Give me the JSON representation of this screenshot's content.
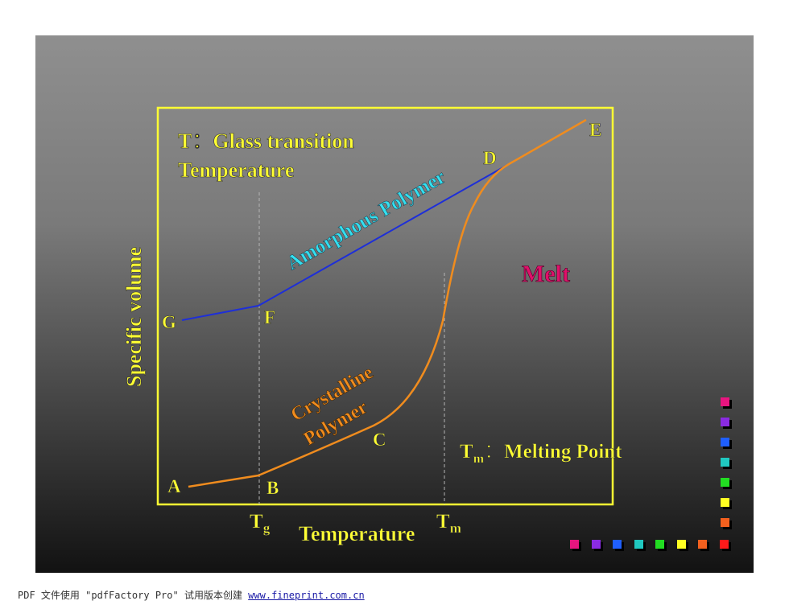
{
  "chart_data": {
    "type": "line",
    "ylabel": "Specific volume",
    "xlabel": "Temperature",
    "series": [
      {
        "name": "Amorphous Polymer",
        "color": "#1e2fd8"
      },
      {
        "name": "Crystalline Polymer",
        "color": "#f08c1e"
      }
    ],
    "points": [
      "A",
      "B",
      "C",
      "D",
      "E",
      "F",
      "G"
    ],
    "ticks": {
      "tg_main": "T",
      "tg_sub": "g",
      "tm_main": "T",
      "tm_sub": "m"
    },
    "annotations": {
      "glass_line1": "T：Glass transition",
      "glass_line2": "Temperature",
      "melt": "Melt",
      "melting_point_main": "T",
      "melting_point_sub": "m",
      "melting_point_text": "：Melting Point",
      "crystalline_line1": "Crystalline",
      "crystalline_line2": "Polymer"
    },
    "colors": {
      "frame": "#ffff33",
      "label": "#ffff33",
      "amorphous_label": "#33e0f0",
      "melt": "#e0106a"
    }
  },
  "decor": {
    "vertical_squares": [
      "#e8157f",
      "#8a2be2",
      "#1f5fff",
      "#20c8c0",
      "#22dd22",
      "#ffff22",
      "#f2601e"
    ],
    "horizontal_squares": [
      "#e8157f",
      "#8a2be2",
      "#1f5fff",
      "#20c8c0",
      "#22dd22",
      "#ffff22",
      "#f2601e",
      "#ff1a1a"
    ]
  },
  "footer": {
    "text": "PDF 文件使用 \"pdfFactory Pro\" 试用版本创建 ",
    "link": "www.fineprint.com.cn"
  }
}
